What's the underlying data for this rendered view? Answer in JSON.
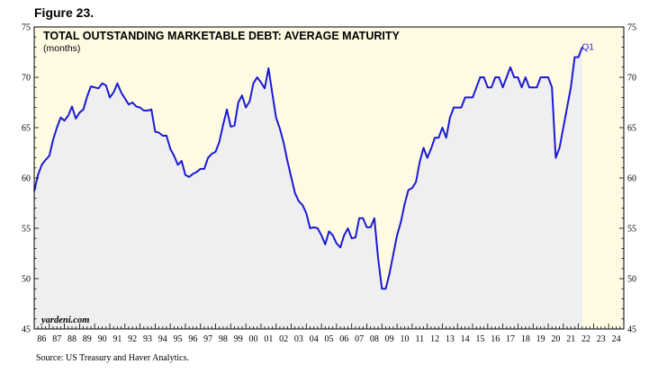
{
  "figure_label": "Figure 23.",
  "source": "Source: US Treasury and Haver Analytics.",
  "watermark": "yardeni.com",
  "colors": {
    "plot_bg": "#fffbe3",
    "area_fill": "#efefef",
    "forecast_bg": "#fffbe3",
    "line": "#1a1ad6",
    "annotation": "#2020d0"
  },
  "chart_data": {
    "type": "area",
    "title": "TOTAL OUTSTANDING MARKETABLE DEBT: AVERAGE MATURITY",
    "subtitle": "(months)",
    "xlabel": "",
    "ylabel": "",
    "xlim": [
      1986,
      2025
    ],
    "ylim": [
      45,
      75
    ],
    "y_ticks": [
      45,
      50,
      55,
      60,
      65,
      70,
      75
    ],
    "x_tick_labels": [
      "86",
      "87",
      "88",
      "89",
      "90",
      "91",
      "92",
      "93",
      "94",
      "95",
      "96",
      "97",
      "98",
      "99",
      "00",
      "01",
      "02",
      "03",
      "04",
      "05",
      "06",
      "07",
      "08",
      "09",
      "10",
      "11",
      "12",
      "13",
      "14",
      "15",
      "16",
      "17",
      "18",
      "19",
      "20",
      "21",
      "22",
      "23",
      "24"
    ],
    "x_tick_start_year": 1986,
    "axis_both_sides": true,
    "grid": false,
    "annotations": [
      {
        "text": "Q1",
        "x": 2022.05,
        "y": 73
      }
    ],
    "series": [
      {
        "values": [
          [
            1986.0,
            58.7
          ],
          [
            1986.25,
            60.3
          ],
          [
            1986.5,
            61.3
          ],
          [
            1986.75,
            61.8
          ],
          [
            1987.0,
            62.2
          ],
          [
            1987.25,
            63.8
          ],
          [
            1987.5,
            65.0
          ],
          [
            1987.75,
            66.0
          ],
          [
            1988.0,
            65.7
          ],
          [
            1988.25,
            66.2
          ],
          [
            1988.5,
            67.1
          ],
          [
            1988.75,
            65.9
          ],
          [
            1989.0,
            66.5
          ],
          [
            1989.25,
            66.8
          ],
          [
            1989.5,
            68.1
          ],
          [
            1989.75,
            69.1
          ],
          [
            1990.0,
            69.0
          ],
          [
            1990.25,
            68.9
          ],
          [
            1990.5,
            69.4
          ],
          [
            1990.75,
            69.2
          ],
          [
            1991.0,
            68.0
          ],
          [
            1991.25,
            68.5
          ],
          [
            1991.5,
            69.4
          ],
          [
            1991.75,
            68.5
          ],
          [
            1992.0,
            67.9
          ],
          [
            1992.25,
            67.3
          ],
          [
            1992.5,
            67.5
          ],
          [
            1992.75,
            67.1
          ],
          [
            1993.0,
            67.0
          ],
          [
            1993.25,
            66.7
          ],
          [
            1993.5,
            66.7
          ],
          [
            1993.75,
            66.8
          ],
          [
            1994.0,
            64.6
          ],
          [
            1994.25,
            64.5
          ],
          [
            1994.5,
            64.2
          ],
          [
            1994.75,
            64.2
          ],
          [
            1995.0,
            62.9
          ],
          [
            1995.25,
            62.2
          ],
          [
            1995.5,
            61.3
          ],
          [
            1995.75,
            61.7
          ],
          [
            1996.0,
            60.3
          ],
          [
            1996.25,
            60.1
          ],
          [
            1996.5,
            60.4
          ],
          [
            1996.75,
            60.6
          ],
          [
            1997.0,
            60.9
          ],
          [
            1997.25,
            60.9
          ],
          [
            1997.5,
            62.0
          ],
          [
            1997.75,
            62.4
          ],
          [
            1998.0,
            62.6
          ],
          [
            1998.25,
            63.6
          ],
          [
            1998.5,
            65.3
          ],
          [
            1998.75,
            66.8
          ],
          [
            1999.0,
            65.1
          ],
          [
            1999.25,
            65.2
          ],
          [
            1999.5,
            67.5
          ],
          [
            1999.75,
            68.2
          ],
          [
            2000.0,
            67.0
          ],
          [
            2000.25,
            67.6
          ],
          [
            2000.5,
            69.4
          ],
          [
            2000.75,
            70.0
          ],
          [
            2001.0,
            69.5
          ],
          [
            2001.25,
            68.9
          ],
          [
            2001.5,
            70.9
          ],
          [
            2001.75,
            68.4
          ],
          [
            2002.0,
            66.0
          ],
          [
            2002.25,
            64.9
          ],
          [
            2002.5,
            63.5
          ],
          [
            2002.75,
            61.7
          ],
          [
            2003.0,
            60.1
          ],
          [
            2003.25,
            58.5
          ],
          [
            2003.5,
            57.7
          ],
          [
            2003.75,
            57.3
          ],
          [
            2004.0,
            56.5
          ],
          [
            2004.25,
            55.0
          ],
          [
            2004.5,
            55.1
          ],
          [
            2004.75,
            55.0
          ],
          [
            2005.0,
            54.3
          ],
          [
            2005.25,
            53.4
          ],
          [
            2005.5,
            54.7
          ],
          [
            2005.75,
            54.3
          ],
          [
            2006.0,
            53.5
          ],
          [
            2006.25,
            53.1
          ],
          [
            2006.5,
            54.3
          ],
          [
            2006.75,
            55.0
          ],
          [
            2007.0,
            54.0
          ],
          [
            2007.25,
            54.1
          ],
          [
            2007.5,
            56.0
          ],
          [
            2007.75,
            56.0
          ],
          [
            2008.0,
            55.1
          ],
          [
            2008.25,
            55.1
          ],
          [
            2008.5,
            56.0
          ],
          [
            2008.75,
            52.0
          ],
          [
            2009.0,
            49.0
          ],
          [
            2009.25,
            49.0
          ],
          [
            2009.5,
            50.5
          ],
          [
            2009.75,
            52.4
          ],
          [
            2010.0,
            54.3
          ],
          [
            2010.25,
            55.6
          ],
          [
            2010.5,
            57.4
          ],
          [
            2010.75,
            58.8
          ],
          [
            2011.0,
            59.0
          ],
          [
            2011.25,
            59.6
          ],
          [
            2011.5,
            61.6
          ],
          [
            2011.75,
            63.0
          ],
          [
            2012.0,
            62.0
          ],
          [
            2012.25,
            62.9
          ],
          [
            2012.5,
            64.0
          ],
          [
            2012.75,
            64.0
          ],
          [
            2013.0,
            65.0
          ],
          [
            2013.25,
            64.0
          ],
          [
            2013.5,
            66.0
          ],
          [
            2013.75,
            67.0
          ],
          [
            2014.0,
            67.0
          ],
          [
            2014.25,
            67.0
          ],
          [
            2014.5,
            68.0
          ],
          [
            2014.75,
            68.0
          ],
          [
            2015.0,
            68.0
          ],
          [
            2015.25,
            69.0
          ],
          [
            2015.5,
            70.0
          ],
          [
            2015.75,
            70.0
          ],
          [
            2016.0,
            69.0
          ],
          [
            2016.25,
            69.0
          ],
          [
            2016.5,
            70.0
          ],
          [
            2016.75,
            70.0
          ],
          [
            2017.0,
            69.0
          ],
          [
            2017.25,
            70.0
          ],
          [
            2017.5,
            71.0
          ],
          [
            2017.75,
            70.0
          ],
          [
            2018.0,
            70.0
          ],
          [
            2018.25,
            69.0
          ],
          [
            2018.5,
            70.0
          ],
          [
            2018.75,
            69.0
          ],
          [
            2019.0,
            69.0
          ],
          [
            2019.25,
            69.0
          ],
          [
            2019.5,
            70.0
          ],
          [
            2019.75,
            70.0
          ],
          [
            2020.0,
            70.0
          ],
          [
            2020.25,
            69.0
          ],
          [
            2020.5,
            62.0
          ],
          [
            2020.75,
            63.0
          ],
          [
            2021.0,
            65.0
          ],
          [
            2021.25,
            67.0
          ],
          [
            2021.5,
            69.0
          ],
          [
            2021.75,
            72.0
          ],
          [
            2022.0,
            72.0
          ],
          [
            2022.25,
            73.0
          ]
        ]
      }
    ]
  }
}
